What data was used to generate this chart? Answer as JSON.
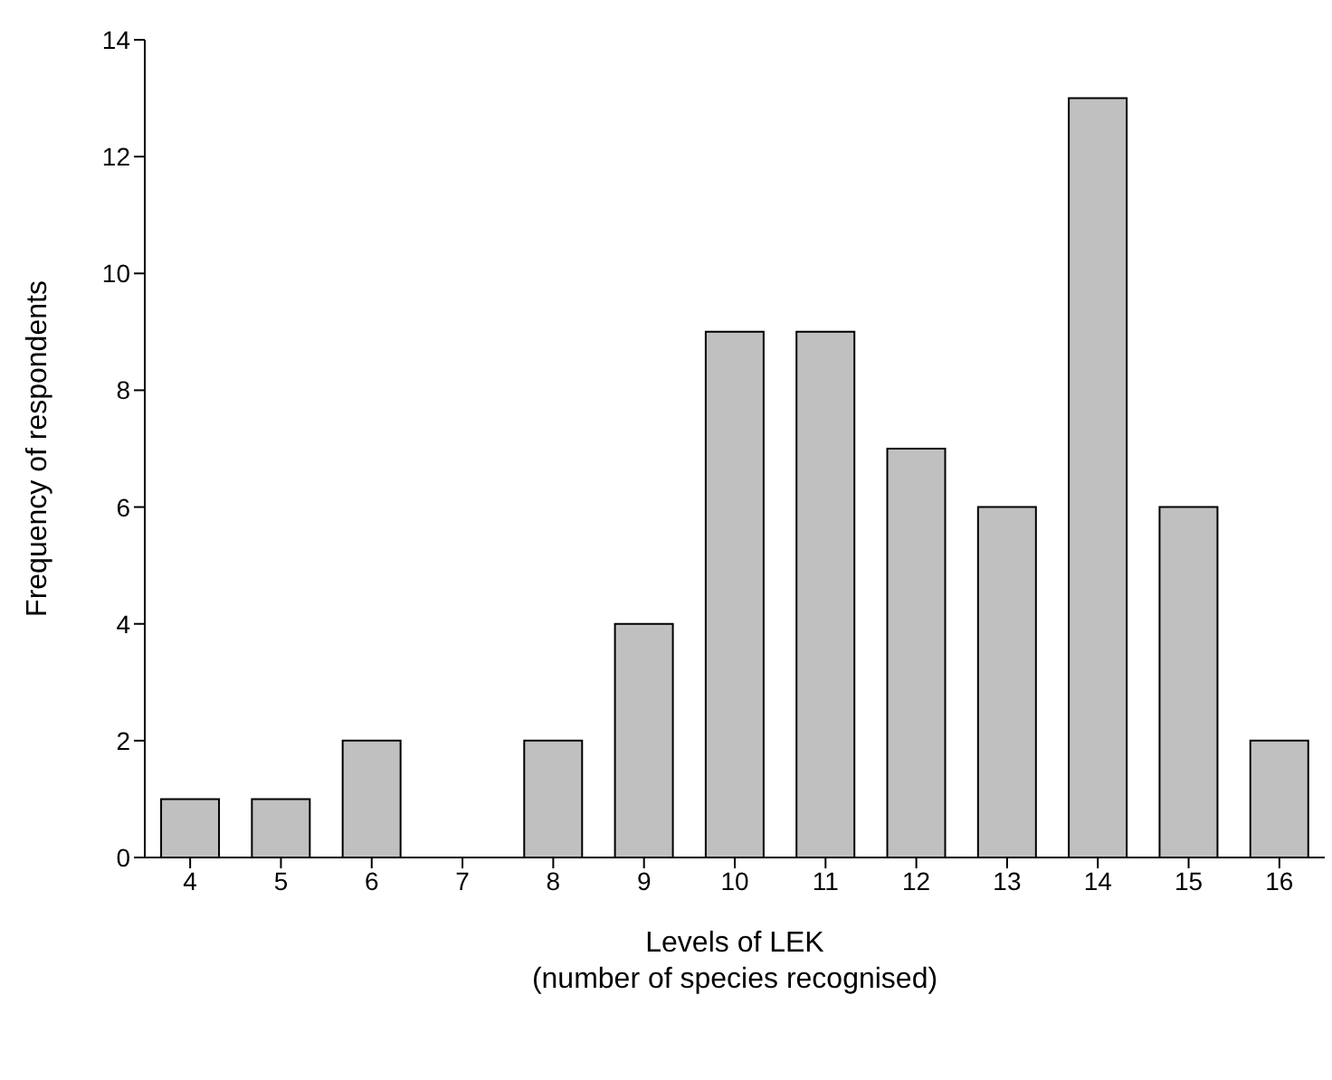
{
  "chart_data": {
    "type": "bar",
    "xlabel": "Levels of LEK\n(number of species recognised)",
    "ylabel": "Frequency of respondents",
    "categories": [
      "4",
      "5",
      "6",
      "7",
      "8",
      "9",
      "10",
      "11",
      "12",
      "13",
      "14",
      "15",
      "16"
    ],
    "values": [
      1,
      1,
      2,
      0,
      2,
      4,
      9,
      9,
      7,
      6,
      13,
      6,
      2
    ],
    "color": "#c0c0c0",
    "ylim": [
      0,
      14
    ],
    "yticks": [
      0,
      2,
      4,
      6,
      8,
      10,
      12,
      14
    ],
    "grid": false
  }
}
